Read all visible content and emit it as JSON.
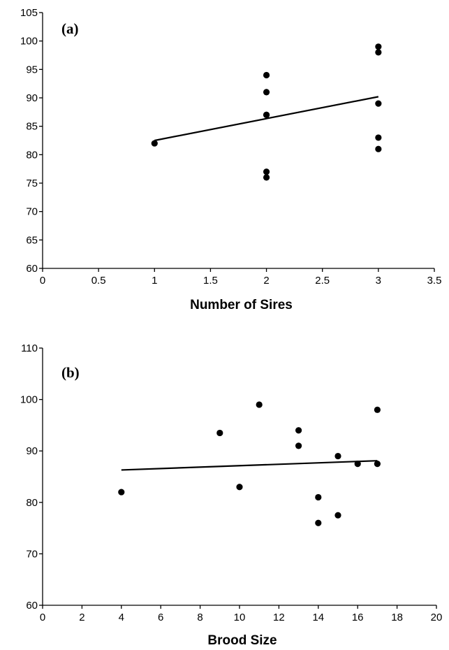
{
  "chart_data": [
    {
      "type": "scatter",
      "panel_label": "(a)",
      "xlabel": "Number of Sires",
      "ylabel": "",
      "xlim": [
        0,
        3.5
      ],
      "ylim": [
        60,
        105
      ],
      "x_ticks": [
        "0",
        "0.5",
        "1",
        "1.5",
        "2",
        "2.5",
        "3",
        "3.5"
      ],
      "y_ticks": [
        "60",
        "65",
        "70",
        "75",
        "80",
        "85",
        "90",
        "95",
        "100",
        "105"
      ],
      "grid": false,
      "series": [
        {
          "points": [
            {
              "x": 1,
              "y": 82
            },
            {
              "x": 2,
              "y": 94
            },
            {
              "x": 2,
              "y": 91
            },
            {
              "x": 2,
              "y": 87
            },
            {
              "x": 2,
              "y": 87
            },
            {
              "x": 2,
              "y": 77
            },
            {
              "x": 2,
              "y": 76
            },
            {
              "x": 3,
              "y": 99
            },
            {
              "x": 3,
              "y": 98
            },
            {
              "x": 3,
              "y": 89
            },
            {
              "x": 3,
              "y": 83
            },
            {
              "x": 3,
              "y": 81
            }
          ]
        }
      ],
      "trendline": {
        "x": [
          1,
          3
        ],
        "y": [
          82.5,
          90.2
        ]
      }
    },
    {
      "type": "scatter",
      "panel_label": "(b)",
      "xlabel": "Brood Size",
      "ylabel": "",
      "xlim": [
        0,
        20
      ],
      "ylim": [
        60,
        110
      ],
      "x_ticks": [
        "0",
        "2",
        "4",
        "6",
        "8",
        "10",
        "12",
        "14",
        "16",
        "18",
        "20"
      ],
      "y_ticks": [
        "60",
        "70",
        "80",
        "90",
        "100",
        "110"
      ],
      "grid": false,
      "series": [
        {
          "points": [
            {
              "x": 4,
              "y": 82
            },
            {
              "x": 9,
              "y": 93.5
            },
            {
              "x": 10,
              "y": 83
            },
            {
              "x": 11,
              "y": 99
            },
            {
              "x": 13,
              "y": 94
            },
            {
              "x": 13,
              "y": 91
            },
            {
              "x": 14,
              "y": 81
            },
            {
              "x": 14,
              "y": 76
            },
            {
              "x": 15,
              "y": 89
            },
            {
              "x": 15,
              "y": 77.5
            },
            {
              "x": 16,
              "y": 87.5
            },
            {
              "x": 17,
              "y": 98
            },
            {
              "x": 17,
              "y": 87.5
            }
          ]
        }
      ],
      "trendline": {
        "x": [
          4,
          17
        ],
        "y": [
          86.3,
          88.1
        ]
      }
    }
  ]
}
